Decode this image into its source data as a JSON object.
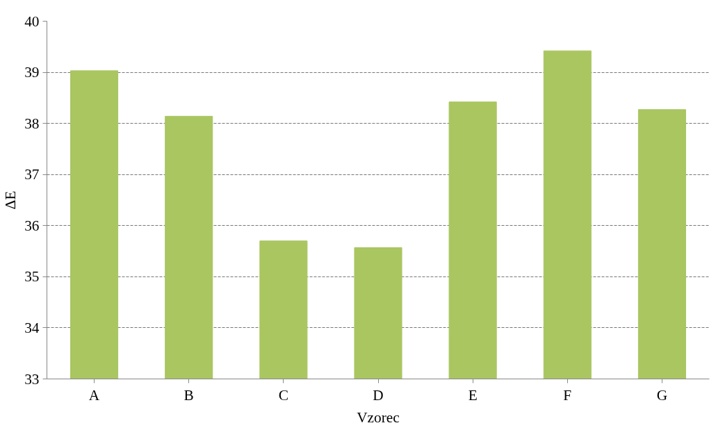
{
  "chart_data": {
    "type": "bar",
    "xlabel": "Vzorec",
    "ylabel": "ΔE",
    "categories": [
      "A",
      "B",
      "C",
      "D",
      "E",
      "F",
      "G"
    ],
    "values": [
      39.03,
      38.14,
      35.7,
      35.57,
      38.42,
      39.42,
      38.27
    ],
    "color": "#a9c661",
    "ylim": [
      33,
      40
    ],
    "yticks": [
      33,
      34,
      35,
      36,
      37,
      38,
      39,
      40
    ],
    "grid": "y"
  }
}
